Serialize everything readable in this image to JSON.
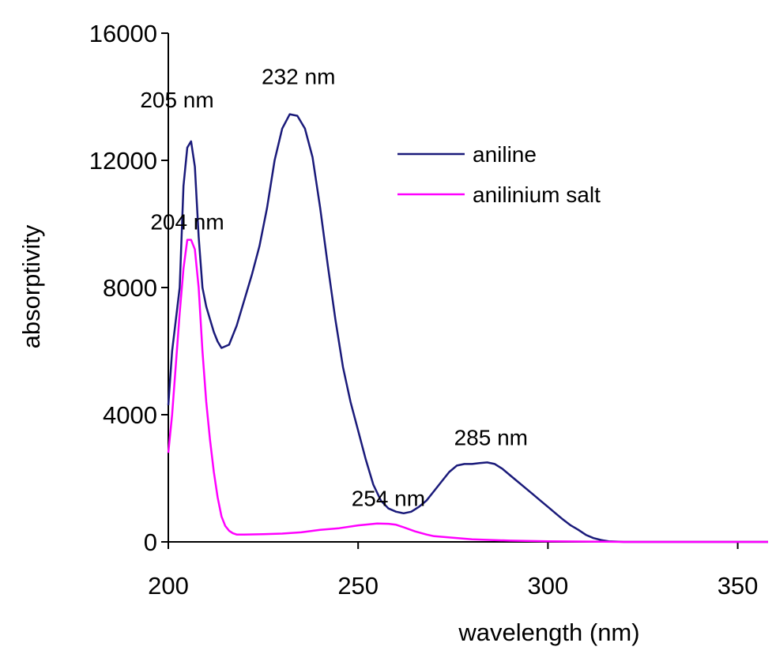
{
  "chart_data": {
    "type": "line",
    "title": "",
    "xlabel": "wavelength (nm)",
    "ylabel": "absorptivity",
    "xlim": [
      200,
      358
    ],
    "ylim": [
      0,
      16000
    ],
    "x_ticks": [
      "200",
      "250",
      "300",
      "350"
    ],
    "y_ticks": [
      "0",
      "4000",
      "8000",
      "12000",
      "16000"
    ],
    "grid": false,
    "legend_position": "top-right",
    "series": [
      {
        "name": "aniline",
        "color": "#1a1a7a",
        "x": [
          200,
          201,
          202,
          203,
          204,
          205,
          206,
          207,
          208,
          209,
          210,
          211,
          212,
          213,
          214,
          216,
          218,
          220,
          222,
          224,
          226,
          228,
          230,
          232,
          234,
          236,
          238,
          240,
          242,
          244,
          246,
          248,
          250,
          252,
          254,
          256,
          258,
          260,
          262,
          264,
          266,
          268,
          270,
          272,
          274,
          276,
          278,
          280,
          282,
          284,
          286,
          288,
          290,
          292,
          294,
          296,
          298,
          300,
          302,
          304,
          306,
          308,
          310,
          312,
          314,
          316,
          320,
          330,
          340,
          350,
          358
        ],
        "y": [
          4300,
          6000,
          7000,
          8000,
          11200,
          12400,
          12600,
          11800,
          9600,
          8000,
          7400,
          7000,
          6600,
          6300,
          6100,
          6200,
          6800,
          7600,
          8400,
          9300,
          10500,
          12000,
          13000,
          13450,
          13400,
          13000,
          12100,
          10500,
          8700,
          7000,
          5500,
          4400,
          3500,
          2600,
          1800,
          1300,
          1050,
          950,
          900,
          950,
          1100,
          1300,
          1600,
          1900,
          2200,
          2400,
          2450,
          2450,
          2480,
          2500,
          2450,
          2300,
          2100,
          1900,
          1700,
          1500,
          1300,
          1100,
          900,
          700,
          520,
          380,
          220,
          120,
          60,
          20,
          0,
          0,
          0,
          0,
          0
        ]
      },
      {
        "name": "anilinium salt",
        "color": "#ff00ff",
        "x": [
          200,
          201,
          202,
          203,
          204,
          205,
          206,
          207,
          208,
          209,
          210,
          211,
          212,
          213,
          214,
          215,
          216,
          217,
          218,
          220,
          225,
          230,
          235,
          240,
          245,
          250,
          255,
          258,
          260,
          262,
          265,
          268,
          270,
          275,
          280,
          290,
          300,
          320,
          340,
          358
        ],
        "y": [
          2800,
          4000,
          5600,
          7200,
          8600,
          9500,
          9500,
          9200,
          8000,
          6000,
          4400,
          3200,
          2200,
          1400,
          800,
          500,
          350,
          270,
          230,
          230,
          240,
          260,
          300,
          380,
          430,
          520,
          580,
          570,
          540,
          460,
          330,
          230,
          180,
          130,
          80,
          40,
          20,
          0,
          0,
          0
        ]
      }
    ],
    "annotations": [
      {
        "text": "205 nm",
        "x": 205,
        "y": 12600
      },
      {
        "text": "232 nm",
        "x": 232,
        "y": 13450
      },
      {
        "text": "204 nm",
        "x": 205,
        "y": 9500
      },
      {
        "text": "285 nm",
        "x": 285,
        "y": 2500
      },
      {
        "text": "254 nm",
        "x": 254,
        "y": 580
      }
    ]
  }
}
